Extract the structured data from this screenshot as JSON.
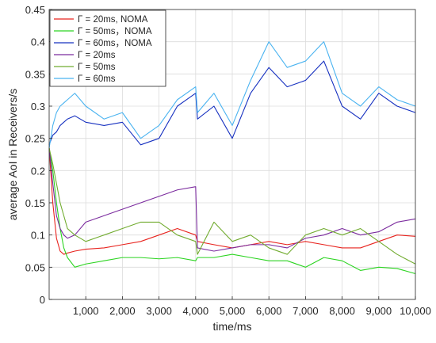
{
  "chart_data": {
    "type": "line",
    "title": "",
    "xlabel": "time/ms",
    "ylabel": "average AoI in Receivers/s",
    "xlim": [
      0,
      10000
    ],
    "ylim": [
      0,
      0.45
    ],
    "grid": true,
    "legend_position": "top-left",
    "x_ticks": [
      1000,
      2000,
      3000,
      4000,
      5000,
      6000,
      7000,
      8000,
      9000,
      10000
    ],
    "x_tick_labels": [
      "1,000",
      "2,000",
      "3,000",
      "4,000",
      "5,000",
      "6,000",
      "7,000",
      "8,000",
      "9,000",
      "10,000"
    ],
    "y_ticks": [
      0,
      0.05,
      0.1,
      0.15,
      0.2,
      0.25,
      0.3,
      0.35,
      0.4,
      0.45
    ],
    "y_tick_labels": [
      "0",
      "0.05",
      "0.1",
      "0.15",
      "0.2",
      "0.25",
      "0.3",
      "0.35",
      "0.4",
      "0.45"
    ],
    "x": [
      0,
      100,
      200,
      300,
      400,
      500,
      700,
      1000,
      1500,
      2000,
      2500,
      3000,
      3500,
      4000,
      4050,
      4500,
      5000,
      5500,
      6000,
      6500,
      7000,
      7500,
      8000,
      8500,
      9000,
      9500,
      10000
    ],
    "series": [
      {
        "name": "Γ = 20ms, NOMA",
        "color": "#e8231e",
        "values": [
          0.235,
          0.15,
          0.095,
          0.075,
          0.07,
          0.072,
          0.075,
          0.078,
          0.08,
          0.085,
          0.09,
          0.1,
          0.11,
          0.1,
          0.09,
          0.085,
          0.08,
          0.085,
          0.09,
          0.085,
          0.09,
          0.085,
          0.08,
          0.08,
          0.09,
          0.1,
          0.098
        ]
      },
      {
        "name": "Γ = 50ms，NOMA",
        "color": "#2bd420",
        "values": [
          0.235,
          0.2,
          0.15,
          0.11,
          0.08,
          0.065,
          0.05,
          0.055,
          0.06,
          0.065,
          0.065,
          0.063,
          0.065,
          0.06,
          0.065,
          0.065,
          0.07,
          0.065,
          0.06,
          0.06,
          0.05,
          0.065,
          0.06,
          0.045,
          0.05,
          0.048,
          0.04
        ]
      },
      {
        "name": "Γ = 60ms，NOMA",
        "color": "#1630c0",
        "values": [
          0.24,
          0.255,
          0.26,
          0.27,
          0.275,
          0.28,
          0.285,
          0.275,
          0.27,
          0.275,
          0.24,
          0.25,
          0.3,
          0.32,
          0.28,
          0.3,
          0.25,
          0.32,
          0.36,
          0.33,
          0.34,
          0.37,
          0.3,
          0.28,
          0.32,
          0.3,
          0.29
        ]
      },
      {
        "name": "Γ = 20ms",
        "color": "#7b2b9e",
        "values": [
          0.235,
          0.18,
          0.13,
          0.11,
          0.1,
          0.095,
          0.1,
          0.12,
          0.13,
          0.14,
          0.15,
          0.16,
          0.17,
          0.175,
          0.08,
          0.075,
          0.08,
          0.085,
          0.085,
          0.08,
          0.095,
          0.1,
          0.11,
          0.1,
          0.105,
          0.12,
          0.125
        ]
      },
      {
        "name": "Γ = 50ms",
        "color": "#72ac30",
        "values": [
          0.235,
          0.21,
          0.18,
          0.15,
          0.13,
          0.11,
          0.1,
          0.09,
          0.1,
          0.11,
          0.12,
          0.12,
          0.1,
          0.09,
          0.07,
          0.12,
          0.09,
          0.1,
          0.08,
          0.07,
          0.1,
          0.11,
          0.1,
          0.11,
          0.09,
          0.07,
          0.055
        ]
      },
      {
        "name": "Γ = 60ms",
        "color": "#4ab3f0",
        "values": [
          0.235,
          0.27,
          0.29,
          0.3,
          0.305,
          0.31,
          0.32,
          0.3,
          0.28,
          0.29,
          0.25,
          0.27,
          0.31,
          0.33,
          0.29,
          0.32,
          0.27,
          0.34,
          0.4,
          0.36,
          0.37,
          0.4,
          0.32,
          0.3,
          0.33,
          0.31,
          0.3
        ]
      }
    ]
  }
}
